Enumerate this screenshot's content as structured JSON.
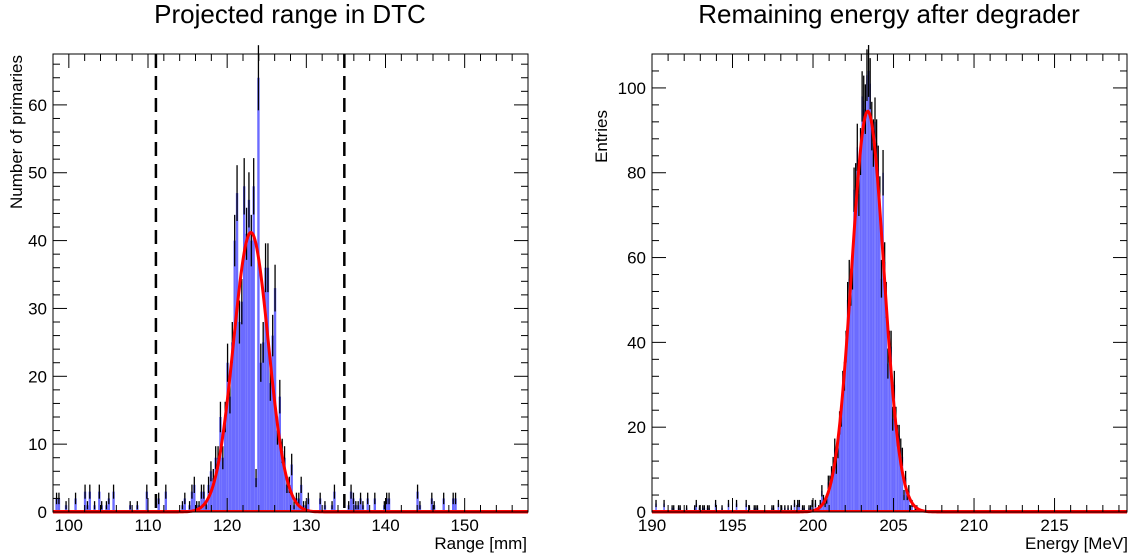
{
  "chart_data": [
    {
      "type": "histogram",
      "title": "Projected range in DTC",
      "xlabel": "Range [mm]",
      "ylabel": "Number of primaries",
      "xlim": [
        98,
        158
      ],
      "ylim": [
        0,
        67.5
      ],
      "xticks": [
        100,
        110,
        120,
        130,
        140,
        150
      ],
      "yticks": [
        0,
        10,
        20,
        30,
        40,
        50,
        60
      ],
      "bin_width": 0.3,
      "fill_color": "#6b6bff",
      "line_color": "#000000",
      "fit": {
        "type": "gaussian",
        "amplitude": 41.2,
        "mean": 123.0,
        "sigma": 2.2,
        "color": "#ff0000"
      },
      "background": {
        "level": 0.9,
        "xmin": 98,
        "xmax": 149
      },
      "spikes": [
        {
          "x": 123.1,
          "y": 40
        },
        {
          "x": 123.4,
          "y": 48
        },
        {
          "x": 123.7,
          "y": 57
        },
        {
          "x": 124.0,
          "y": 64
        },
        {
          "x": 124.3,
          "y": 22
        },
        {
          "x": 123.7,
          "y": 5
        },
        {
          "x": 121.0,
          "y": 40
        },
        {
          "x": 121.3,
          "y": 47
        },
        {
          "x": 122.2,
          "y": 48
        },
        {
          "x": 125.2,
          "y": 36
        },
        {
          "x": 126.1,
          "y": 33
        }
      ],
      "vlines": [
        {
          "x": 111.0,
          "style": "dashed"
        },
        {
          "x": 134.8,
          "style": "dashed"
        }
      ]
    },
    {
      "type": "histogram",
      "title": "Remaining energy after degrader",
      "xlabel": "Energy [MeV]",
      "ylabel": "Entries",
      "xlim": [
        190,
        219.5
      ],
      "ylim": [
        0,
        108
      ],
      "xticks": [
        190,
        195,
        200,
        205,
        210,
        215
      ],
      "yticks": [
        0,
        20,
        40,
        60,
        80,
        100
      ],
      "bin_width": 0.1,
      "fill_color": "#6b6bff",
      "line_color": "#000000",
      "fit": {
        "type": "gaussian",
        "amplitude": 94.5,
        "mean": 203.4,
        "sigma": 1.0,
        "color": "#ff0000"
      },
      "background": {
        "level": 0.6,
        "xmin": 190,
        "xmax": 201
      },
      "spikes": [
        {
          "x": 203.3,
          "y": 103
        },
        {
          "x": 203.5,
          "y": 101
        },
        {
          "x": 203.0,
          "y": 98
        },
        {
          "x": 203.8,
          "y": 92
        },
        {
          "x": 202.9,
          "y": 85
        },
        {
          "x": 204.3,
          "y": 80
        }
      ],
      "vlines": []
    }
  ]
}
